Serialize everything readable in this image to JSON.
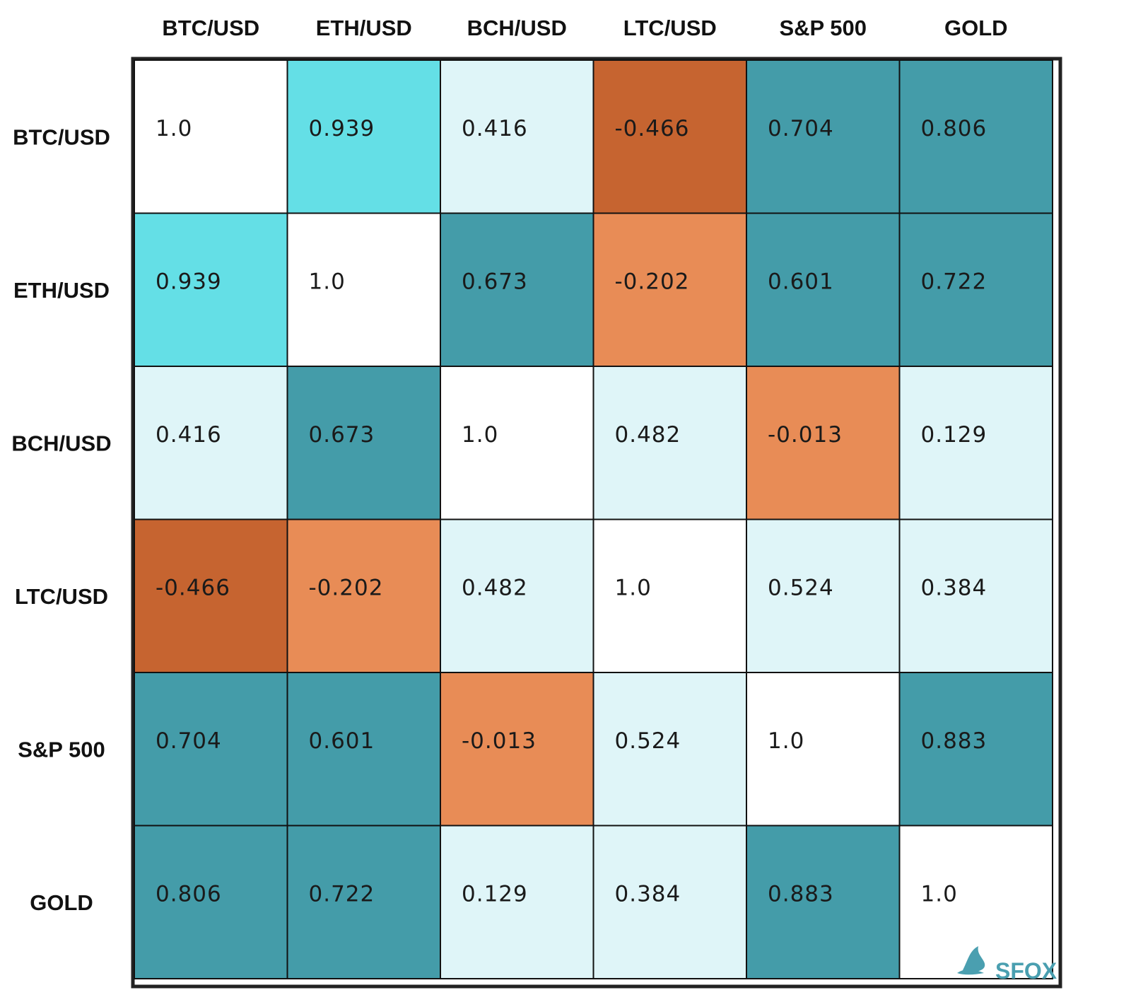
{
  "chart_data": {
    "type": "heatmap",
    "title": "",
    "xlabel": "",
    "ylabel": "",
    "columns": [
      "BTC/USD",
      "ETH/USD",
      "BCH/USD",
      "LTC/USD",
      "S&P 500",
      "GOLD"
    ],
    "rows": [
      "BTC/USD",
      "ETH/USD",
      "BCH/USD",
      "LTC/USD",
      "S&P 500",
      "GOLD"
    ],
    "values": [
      [
        "1.0",
        "0.939",
        "0.416",
        "-0.466",
        "0.704",
        "0.806"
      ],
      [
        "0.939",
        "1.0",
        "0.673",
        "-0.202",
        "0.601",
        "0.722"
      ],
      [
        "0.416",
        "0.673",
        "1.0",
        "0.482",
        "-0.013",
        "0.129"
      ],
      [
        "-0.466",
        "-0.202",
        "0.482",
        "1.0",
        "0.524",
        "0.384"
      ],
      [
        "0.704",
        "0.601",
        "-0.013",
        "0.524",
        "1.0",
        "0.883"
      ],
      [
        "0.806",
        "0.722",
        "0.129",
        "0.384",
        "0.883",
        "1.0"
      ]
    ],
    "colors": {
      "diagonal": "#ffffff",
      "dark_orange": "#c66430",
      "light_orange": "#e88c56",
      "bright_cyan": "#64dfe6",
      "pale_cyan": "#dff5f8",
      "teal": "#449ca9",
      "border": "#111111"
    }
  },
  "logo": {
    "text": "SFOX",
    "color": "#4a9fb0",
    "icon": "fox-icon"
  }
}
